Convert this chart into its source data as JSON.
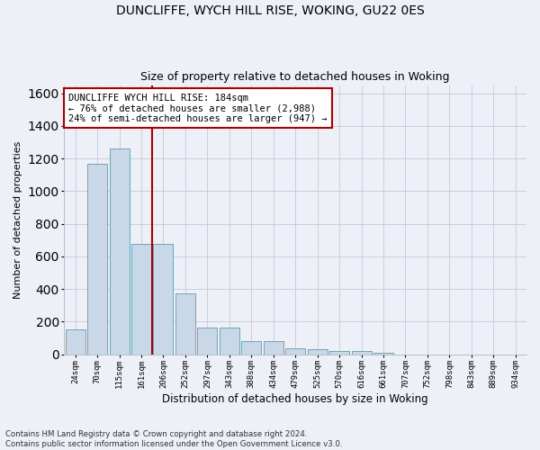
{
  "title_line1": "DUNCLIFFE, WYCH HILL RISE, WOKING, GU22 0ES",
  "title_line2": "Size of property relative to detached houses in Woking",
  "xlabel": "Distribution of detached houses by size in Woking",
  "ylabel": "Number of detached properties",
  "categories": [
    "24sqm",
    "70sqm",
    "115sqm",
    "161sqm",
    "206sqm",
    "252sqm",
    "297sqm",
    "343sqm",
    "388sqm",
    "434sqm",
    "479sqm",
    "525sqm",
    "570sqm",
    "616sqm",
    "661sqm",
    "707sqm",
    "752sqm",
    "798sqm",
    "843sqm",
    "889sqm",
    "934sqm"
  ],
  "values": [
    150,
    1170,
    1260,
    675,
    675,
    375,
    165,
    165,
    80,
    80,
    35,
    30,
    20,
    20,
    10,
    0,
    0,
    0,
    0,
    0,
    0
  ],
  "bar_color": "#c8d8e8",
  "bar_edgecolor": "#6699aa",
  "vline_color": "#aa0000",
  "annotation_text": "DUNCLIFFE WYCH HILL RISE: 184sqm\n← 76% of detached houses are smaller (2,988)\n24% of semi-detached houses are larger (947) →",
  "annotation_box_color": "#ffffff",
  "annotation_box_edgecolor": "#aa0000",
  "ylim": [
    0,
    1650
  ],
  "yticks": [
    0,
    200,
    400,
    600,
    800,
    1000,
    1200,
    1400,
    1600
  ],
  "grid_color": "#ccccdd",
  "background_color": "#eef0f8",
  "footer": "Contains HM Land Registry data © Crown copyright and database right 2024.\nContains public sector information licensed under the Open Government Licence v3.0."
}
